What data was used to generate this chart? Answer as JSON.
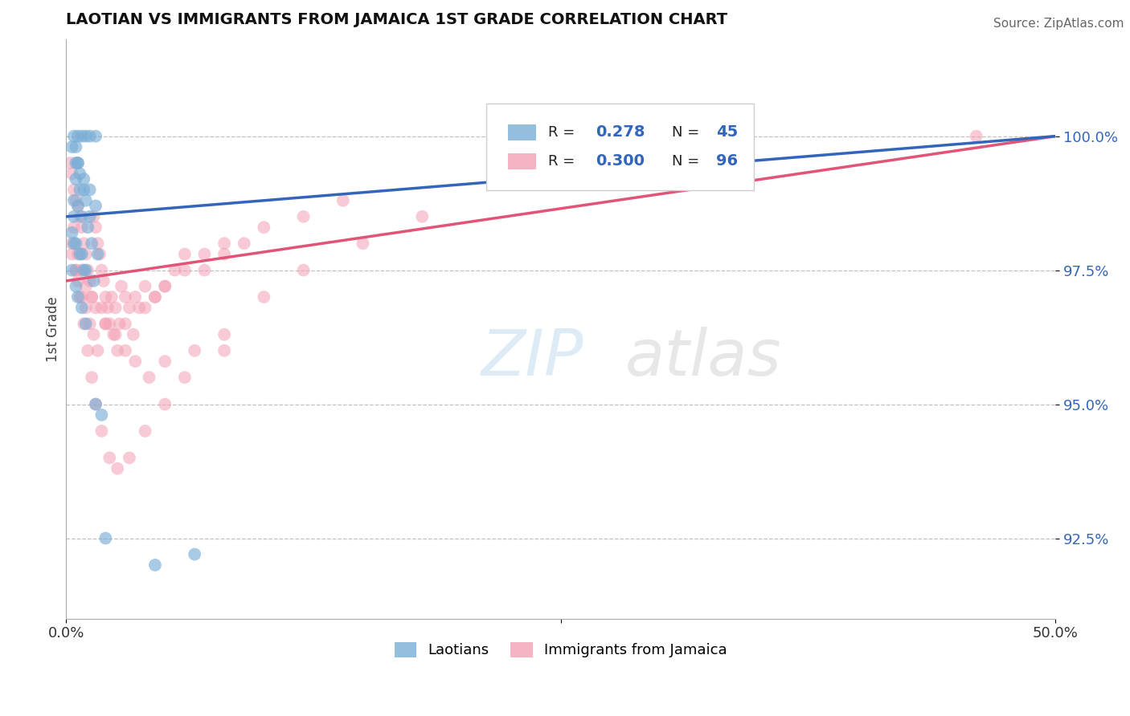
{
  "title": "LAOTIAN VS IMMIGRANTS FROM JAMAICA 1ST GRADE CORRELATION CHART",
  "source": "Source: ZipAtlas.com",
  "ylabel": "1st Grade",
  "xlim": [
    0.0,
    50.0
  ],
  "ylim": [
    91.0,
    101.8
  ],
  "yticks": [
    92.5,
    95.0,
    97.5,
    100.0
  ],
  "ytick_labels": [
    "92.5%",
    "95.0%",
    "97.5%",
    "100.0%"
  ],
  "blue_R": 0.278,
  "blue_N": 45,
  "pink_R": 0.3,
  "pink_N": 96,
  "blue_color": "#7aaed6",
  "pink_color": "#f4a0b5",
  "blue_line_color": "#3366bb",
  "pink_line_color": "#e05577",
  "blue_label": "Laotians",
  "pink_label": "Immigrants from Jamaica",
  "background_color": "#ffffff",
  "grid_color": "#bbbbbb",
  "blue_line_x0": 0.0,
  "blue_line_y0": 98.5,
  "blue_line_x1": 50.0,
  "blue_line_y1": 100.0,
  "pink_line_x0": 0.0,
  "pink_line_y0": 97.3,
  "pink_line_x1": 50.0,
  "pink_line_y1": 100.0,
  "blue_scatter_x": [
    0.4,
    0.6,
    0.8,
    1.0,
    1.2,
    1.5,
    0.3,
    0.5,
    0.7,
    0.9,
    0.4,
    0.6,
    0.8,
    1.1,
    1.3,
    1.6,
    0.5,
    0.7,
    1.0,
    1.2,
    0.3,
    0.5,
    0.8,
    1.0,
    1.4,
    0.6,
    0.9,
    1.2,
    1.5,
    0.4,
    0.3,
    0.5,
    0.6,
    0.8,
    1.0,
    0.4,
    0.7,
    0.9,
    0.5,
    0.6,
    1.5,
    1.8,
    2.0,
    4.5,
    6.5
  ],
  "blue_scatter_y": [
    100.0,
    100.0,
    100.0,
    100.0,
    100.0,
    100.0,
    99.8,
    99.5,
    99.3,
    99.0,
    98.8,
    98.7,
    98.5,
    98.3,
    98.0,
    97.8,
    99.2,
    99.0,
    98.8,
    98.5,
    98.2,
    98.0,
    97.8,
    97.5,
    97.3,
    99.5,
    99.2,
    99.0,
    98.7,
    98.5,
    97.5,
    97.2,
    97.0,
    96.8,
    96.5,
    98.0,
    97.8,
    97.5,
    99.8,
    99.5,
    95.0,
    94.8,
    92.5,
    92.0,
    92.2
  ],
  "pink_scatter_x": [
    0.2,
    0.3,
    0.4,
    0.5,
    0.6,
    0.7,
    0.8,
    0.9,
    1.0,
    1.1,
    1.2,
    1.3,
    1.4,
    1.5,
    1.6,
    1.7,
    1.8,
    1.9,
    2.0,
    2.1,
    2.2,
    2.3,
    2.5,
    2.7,
    2.8,
    3.0,
    3.2,
    3.5,
    3.7,
    4.0,
    4.5,
    5.0,
    5.5,
    6.0,
    7.0,
    8.0,
    9.0,
    10.0,
    12.0,
    14.0,
    0.3,
    0.5,
    0.6,
    0.8,
    1.0,
    1.2,
    1.4,
    1.6,
    1.8,
    2.0,
    2.4,
    2.6,
    3.0,
    3.4,
    4.0,
    4.5,
    5.0,
    6.0,
    7.0,
    8.0,
    0.4,
    0.6,
    0.8,
    1.0,
    1.3,
    1.5,
    2.0,
    2.5,
    3.0,
    3.5,
    4.2,
    5.0,
    6.5,
    8.0,
    10.0,
    12.0,
    15.0,
    18.0,
    22.0,
    28.0,
    0.3,
    0.5,
    0.7,
    0.9,
    1.1,
    1.3,
    1.5,
    1.8,
    2.2,
    2.6,
    3.2,
    4.0,
    5.0,
    6.0,
    8.0,
    46.0
  ],
  "pink_scatter_y": [
    99.5,
    99.3,
    99.0,
    98.8,
    98.7,
    98.5,
    98.3,
    98.0,
    97.8,
    97.5,
    97.3,
    97.0,
    98.5,
    98.3,
    98.0,
    97.8,
    97.5,
    97.3,
    97.0,
    96.8,
    96.5,
    97.0,
    96.8,
    96.5,
    97.2,
    97.0,
    96.8,
    97.0,
    96.8,
    97.2,
    97.0,
    97.2,
    97.5,
    97.8,
    97.5,
    97.8,
    98.0,
    98.3,
    98.5,
    98.8,
    97.8,
    97.5,
    97.3,
    97.0,
    96.8,
    96.5,
    96.3,
    96.0,
    96.8,
    96.5,
    96.3,
    96.0,
    96.5,
    96.3,
    96.8,
    97.0,
    97.2,
    97.5,
    97.8,
    98.0,
    98.3,
    97.8,
    97.5,
    97.2,
    97.0,
    96.8,
    96.5,
    96.3,
    96.0,
    95.8,
    95.5,
    95.8,
    96.0,
    96.3,
    97.0,
    97.5,
    98.0,
    98.5,
    99.2,
    100.0,
    98.0,
    97.5,
    97.0,
    96.5,
    96.0,
    95.5,
    95.0,
    94.5,
    94.0,
    93.8,
    94.0,
    94.5,
    95.0,
    95.5,
    96.0,
    100.0
  ]
}
